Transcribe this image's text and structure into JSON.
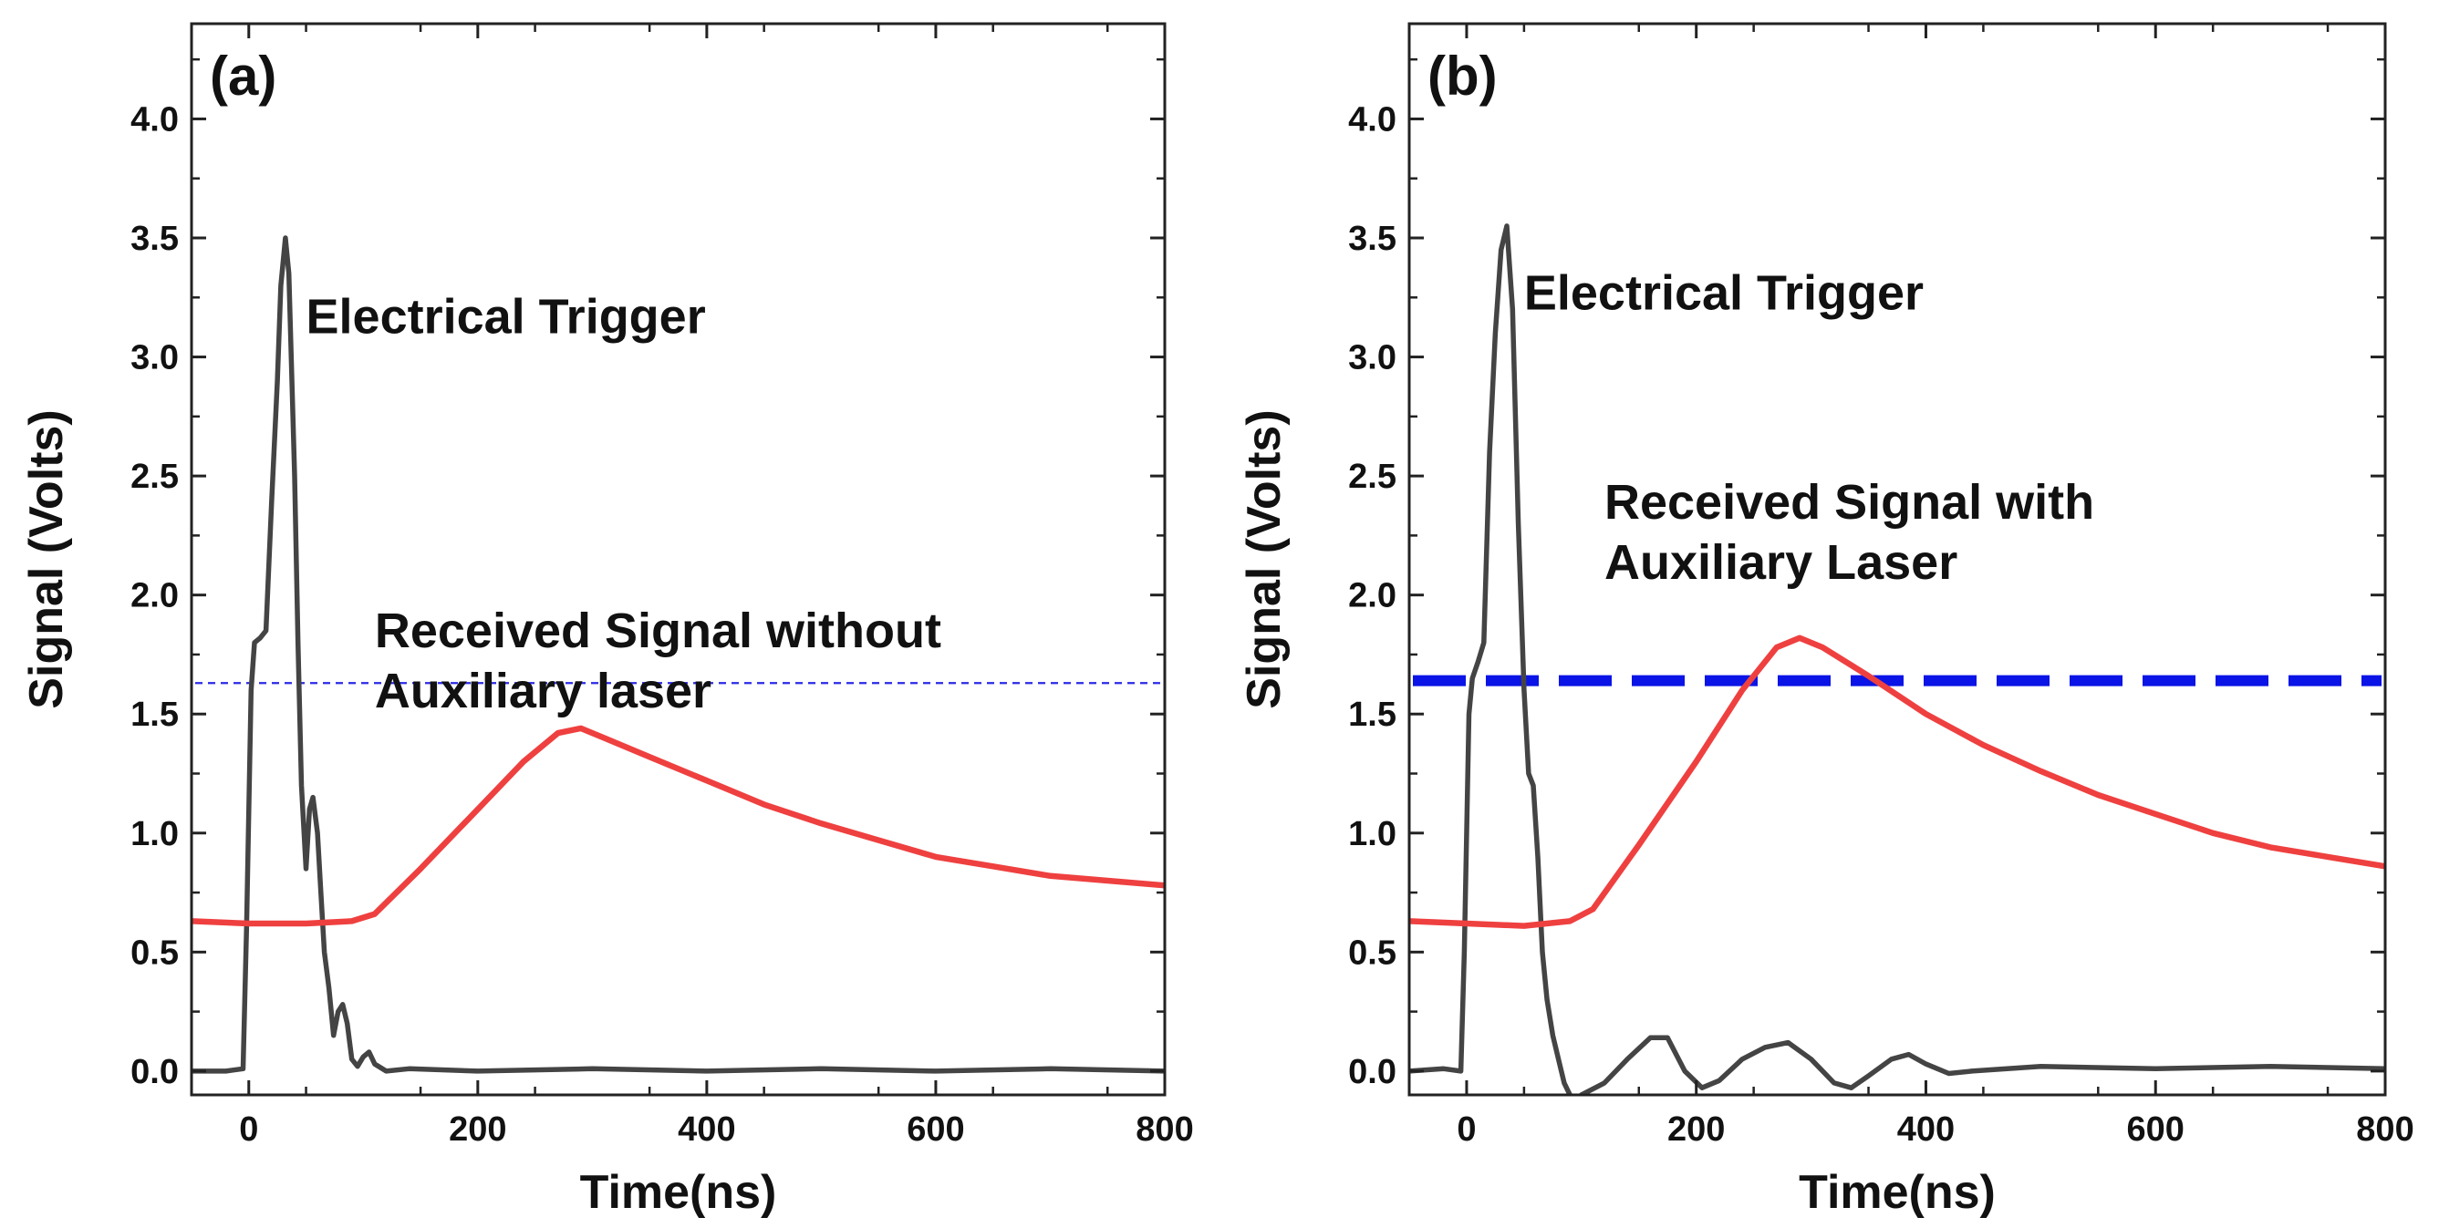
{
  "chart_data": [
    {
      "type": "line",
      "panel_label": "(a)",
      "xlabel": "Time(ns)",
      "ylabel": "Signal (Volts)",
      "xlim": [
        -50,
        800
      ],
      "ylim": [
        -0.1,
        4.4
      ],
      "x_ticks": [
        0,
        200,
        400,
        600,
        800
      ],
      "y_ticks": [
        0.0,
        0.5,
        1.0,
        1.5,
        2.0,
        2.5,
        3.0,
        3.5,
        4.0
      ],
      "x_tick_labels": [
        "0",
        "200",
        "400",
        "600",
        "800"
      ],
      "y_tick_labels": [
        "0.0",
        "0.5",
        "1.0",
        "1.5",
        "2.0",
        "2.5",
        "3.0",
        "3.5",
        "4.0"
      ],
      "threshold": {
        "y": 1.63,
        "style": "thin-dashed",
        "color": "#2a2ae6"
      },
      "annotations": [
        {
          "lines": [
            "Electrical Trigger"
          ],
          "x": 50,
          "y": 3.1
        },
        {
          "lines": [
            "Received Signal without",
            "Auxiliary laser"
          ],
          "x": 110,
          "y": 1.78
        }
      ],
      "series": [
        {
          "name": "Electrical Trigger",
          "color": "#444444",
          "points": [
            [
              -50,
              0.0
            ],
            [
              -20,
              0.0
            ],
            [
              -5,
              0.01
            ],
            [
              -2,
              0.6
            ],
            [
              2,
              1.6
            ],
            [
              5,
              1.8
            ],
            [
              10,
              1.82
            ],
            [
              15,
              1.85
            ],
            [
              20,
              2.4
            ],
            [
              25,
              2.9
            ],
            [
              28,
              3.3
            ],
            [
              32,
              3.5
            ],
            [
              35,
              3.35
            ],
            [
              40,
              2.5
            ],
            [
              43,
              1.8
            ],
            [
              46,
              1.2
            ],
            [
              50,
              0.85
            ],
            [
              53,
              1.1
            ],
            [
              56,
              1.15
            ],
            [
              60,
              1.0
            ],
            [
              63,
              0.75
            ],
            [
              66,
              0.5
            ],
            [
              70,
              0.35
            ],
            [
              74,
              0.15
            ],
            [
              78,
              0.25
            ],
            [
              82,
              0.28
            ],
            [
              86,
              0.2
            ],
            [
              90,
              0.05
            ],
            [
              95,
              0.02
            ],
            [
              100,
              0.06
            ],
            [
              105,
              0.08
            ],
            [
              110,
              0.03
            ],
            [
              120,
              0.0
            ],
            [
              140,
              0.01
            ],
            [
              200,
              0.0
            ],
            [
              300,
              0.01
            ],
            [
              400,
              0.0
            ],
            [
              500,
              0.01
            ],
            [
              600,
              0.0
            ],
            [
              700,
              0.01
            ],
            [
              800,
              0.0
            ]
          ]
        },
        {
          "name": "Received Signal without Auxiliary laser",
          "color": "#ef4040",
          "points": [
            [
              -50,
              0.63
            ],
            [
              0,
              0.62
            ],
            [
              50,
              0.62
            ],
            [
              90,
              0.63
            ],
            [
              110,
              0.66
            ],
            [
              150,
              0.85
            ],
            [
              200,
              1.1
            ],
            [
              240,
              1.3
            ],
            [
              270,
              1.42
            ],
            [
              290,
              1.44
            ],
            [
              310,
              1.4
            ],
            [
              350,
              1.32
            ],
            [
              400,
              1.22
            ],
            [
              450,
              1.12
            ],
            [
              500,
              1.04
            ],
            [
              550,
              0.97
            ],
            [
              600,
              0.9
            ],
            [
              650,
              0.86
            ],
            [
              700,
              0.82
            ],
            [
              750,
              0.8
            ],
            [
              800,
              0.78
            ]
          ]
        }
      ]
    },
    {
      "type": "line",
      "panel_label": "(b)",
      "xlabel": "Time(ns)",
      "ylabel": "Signal (Volts)",
      "xlim": [
        -50,
        800
      ],
      "ylim": [
        -0.1,
        4.4
      ],
      "x_ticks": [
        0,
        200,
        400,
        600,
        800
      ],
      "y_ticks": [
        0.0,
        0.5,
        1.0,
        1.5,
        2.0,
        2.5,
        3.0,
        3.5,
        4.0
      ],
      "x_tick_labels": [
        "0",
        "200",
        "400",
        "600",
        "800"
      ],
      "y_tick_labels": [
        "0.0",
        "0.5",
        "1.0",
        "1.5",
        "2.0",
        "2.5",
        "3.0",
        "3.5",
        "4.0"
      ],
      "threshold": {
        "y": 1.64,
        "style": "thick-dashed",
        "color": "#0a14e6"
      },
      "annotations": [
        {
          "lines": [
            "Electrical Trigger"
          ],
          "x": 50,
          "y": 3.2
        },
        {
          "lines": [
            "Received Signal with",
            "Auxiliary Laser"
          ],
          "x": 120,
          "y": 2.32
        }
      ],
      "series": [
        {
          "name": "Electrical Trigger",
          "color": "#444444",
          "points": [
            [
              -50,
              0.0
            ],
            [
              -20,
              0.01
            ],
            [
              -5,
              0.0
            ],
            [
              -2,
              0.5
            ],
            [
              2,
              1.5
            ],
            [
              5,
              1.65
            ],
            [
              10,
              1.72
            ],
            [
              15,
              1.8
            ],
            [
              20,
              2.6
            ],
            [
              25,
              3.1
            ],
            [
              30,
              3.45
            ],
            [
              35,
              3.55
            ],
            [
              40,
              3.2
            ],
            [
              45,
              2.3
            ],
            [
              50,
              1.6
            ],
            [
              54,
              1.25
            ],
            [
              58,
              1.2
            ],
            [
              62,
              0.9
            ],
            [
              66,
              0.5
            ],
            [
              70,
              0.3
            ],
            [
              75,
              0.15
            ],
            [
              80,
              0.05
            ],
            [
              85,
              -0.05
            ],
            [
              90,
              -0.1
            ],
            [
              95,
              -0.12
            ],
            [
              100,
              -0.1
            ],
            [
              120,
              -0.05
            ],
            [
              140,
              0.05
            ],
            [
              160,
              0.14
            ],
            [
              175,
              0.14
            ],
            [
              190,
              0.0
            ],
            [
              205,
              -0.07
            ],
            [
              220,
              -0.04
            ],
            [
              240,
              0.05
            ],
            [
              260,
              0.1
            ],
            [
              280,
              0.12
            ],
            [
              300,
              0.05
            ],
            [
              320,
              -0.05
            ],
            [
              335,
              -0.07
            ],
            [
              350,
              -0.02
            ],
            [
              370,
              0.05
            ],
            [
              385,
              0.07
            ],
            [
              400,
              0.03
            ],
            [
              420,
              -0.01
            ],
            [
              440,
              0.0
            ],
            [
              500,
              0.02
            ],
            [
              600,
              0.01
            ],
            [
              700,
              0.02
            ],
            [
              800,
              0.01
            ]
          ]
        },
        {
          "name": "Received Signal with Auxiliary Laser",
          "color": "#ef4040",
          "points": [
            [
              -50,
              0.63
            ],
            [
              0,
              0.62
            ],
            [
              50,
              0.61
            ],
            [
              90,
              0.63
            ],
            [
              110,
              0.68
            ],
            [
              150,
              0.95
            ],
            [
              200,
              1.3
            ],
            [
              240,
              1.6
            ],
            [
              270,
              1.78
            ],
            [
              290,
              1.82
            ],
            [
              310,
              1.78
            ],
            [
              350,
              1.66
            ],
            [
              400,
              1.5
            ],
            [
              450,
              1.37
            ],
            [
              500,
              1.26
            ],
            [
              550,
              1.16
            ],
            [
              600,
              1.08
            ],
            [
              650,
              1.0
            ],
            [
              700,
              0.94
            ],
            [
              750,
              0.9
            ],
            [
              800,
              0.86
            ]
          ]
        }
      ]
    }
  ]
}
